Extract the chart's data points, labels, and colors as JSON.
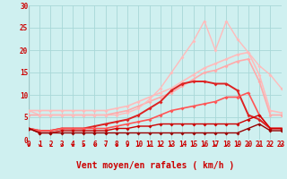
{
  "xlabel": "Vent moyen/en rafales ( km/h )",
  "ylabel": "",
  "xlim": [
    0,
    23
  ],
  "ylim": [
    0,
    30
  ],
  "yticks": [
    0,
    5,
    10,
    15,
    20,
    25,
    30
  ],
  "xticks": [
    0,
    1,
    2,
    3,
    4,
    5,
    6,
    7,
    8,
    9,
    10,
    11,
    12,
    13,
    14,
    15,
    16,
    17,
    18,
    19,
    20,
    21,
    22,
    23
  ],
  "bg_color": "#cff0f0",
  "grid_color": "#a8d8d8",
  "lines": [
    {
      "x": [
        0,
        1,
        2,
        3,
        4,
        5,
        6,
        7,
        8,
        9,
        10,
        11,
        12,
        13,
        14,
        15,
        16,
        17,
        18,
        19,
        20,
        21,
        22,
        23
      ],
      "y": [
        6.5,
        6.5,
        6.5,
        6.5,
        6.5,
        6.5,
        6.5,
        6.5,
        7.0,
        7.5,
        8.5,
        9.5,
        10.5,
        11.5,
        13.0,
        14.5,
        16.0,
        17.0,
        18.0,
        19.0,
        19.5,
        14.5,
        6.5,
        6.0
      ],
      "color": "#ffbbbb",
      "lw": 1.2,
      "marker": "D",
      "ms": 2.0
    },
    {
      "x": [
        0,
        1,
        2,
        3,
        4,
        5,
        6,
        7,
        8,
        9,
        10,
        11,
        12,
        13,
        14,
        15,
        16,
        17,
        18,
        19,
        20,
        21,
        22,
        23
      ],
      "y": [
        5.5,
        5.5,
        5.5,
        5.5,
        5.5,
        5.5,
        5.5,
        5.5,
        6.0,
        6.5,
        7.5,
        8.5,
        9.5,
        10.5,
        12.0,
        13.5,
        15.0,
        15.5,
        16.5,
        17.5,
        18.0,
        13.0,
        5.5,
        5.5
      ],
      "color": "#ffaaaa",
      "lw": 1.2,
      "marker": "D",
      "ms": 2.0
    },
    {
      "x": [
        0,
        1,
        2,
        3,
        4,
        5,
        6,
        7,
        8,
        9,
        10,
        11,
        12,
        13,
        14,
        15,
        16,
        17,
        18,
        19,
        20,
        21,
        22,
        23
      ],
      "y": [
        6.5,
        5.5,
        5.5,
        5.5,
        5.5,
        5.5,
        5.5,
        5.5,
        5.5,
        6.0,
        7.0,
        9.0,
        11.5,
        15.0,
        18.5,
        22.0,
        26.5,
        20.0,
        26.5,
        22.5,
        19.5,
        16.5,
        14.5,
        11.5
      ],
      "color": "#ffbbbb",
      "lw": 1.0,
      "marker": "D",
      "ms": 2.0
    },
    {
      "x": [
        0,
        1,
        2,
        3,
        4,
        5,
        6,
        7,
        8,
        9,
        10,
        11,
        12,
        13,
        14,
        15,
        16,
        17,
        18,
        19,
        20,
        21,
        22,
        23
      ],
      "y": [
        2.5,
        2.0,
        2.0,
        2.5,
        2.5,
        2.5,
        3.0,
        3.5,
        4.0,
        4.5,
        5.5,
        7.0,
        8.5,
        11.0,
        12.5,
        13.0,
        13.0,
        12.5,
        12.5,
        11.0,
        5.5,
        4.5,
        2.5,
        2.5
      ],
      "color": "#dd2222",
      "lw": 1.4,
      "marker": "D",
      "ms": 2.0
    },
    {
      "x": [
        0,
        1,
        2,
        3,
        4,
        5,
        6,
        7,
        8,
        9,
        10,
        11,
        12,
        13,
        14,
        15,
        16,
        17,
        18,
        19,
        20,
        21,
        22,
        23
      ],
      "y": [
        2.5,
        2.0,
        2.0,
        2.5,
        2.5,
        2.5,
        2.5,
        2.5,
        3.0,
        3.5,
        4.0,
        4.5,
        5.5,
        6.5,
        7.0,
        7.5,
        8.0,
        8.5,
        9.5,
        9.5,
        10.5,
        5.5,
        2.5,
        2.5
      ],
      "color": "#ff5555",
      "lw": 1.2,
      "marker": "D",
      "ms": 2.0
    },
    {
      "x": [
        0,
        1,
        2,
        3,
        4,
        5,
        6,
        7,
        8,
        9,
        10,
        11,
        12,
        13,
        14,
        15,
        16,
        17,
        18,
        19,
        20,
        21,
        22,
        23
      ],
      "y": [
        2.5,
        1.5,
        1.5,
        2.0,
        2.0,
        2.0,
        2.0,
        2.0,
        2.5,
        2.5,
        3.0,
        3.0,
        3.5,
        3.5,
        3.5,
        3.5,
        3.5,
        3.5,
        3.5,
        3.5,
        4.5,
        5.5,
        2.5,
        2.5
      ],
      "color": "#cc0000",
      "lw": 1.0,
      "marker": "D",
      "ms": 2.0
    },
    {
      "x": [
        0,
        1,
        2,
        3,
        4,
        5,
        6,
        7,
        8,
        9,
        10,
        11,
        12,
        13,
        14,
        15,
        16,
        17,
        18,
        19,
        20,
        21,
        22,
        23
      ],
      "y": [
        2.5,
        1.5,
        1.5,
        1.5,
        1.5,
        1.5,
        1.5,
        1.5,
        1.5,
        1.5,
        1.5,
        1.5,
        1.5,
        1.5,
        1.5,
        1.5,
        1.5,
        1.5,
        1.5,
        1.5,
        2.5,
        3.5,
        2.0,
        2.0
      ],
      "color": "#990000",
      "lw": 1.0,
      "marker": "D",
      "ms": 2.0
    }
  ],
  "arrow_color": "#cc0000",
  "tick_label_color": "#cc0000",
  "axis_label_color": "#cc0000",
  "tick_label_fontsize": 5.5,
  "xlabel_fontsize": 7.0
}
